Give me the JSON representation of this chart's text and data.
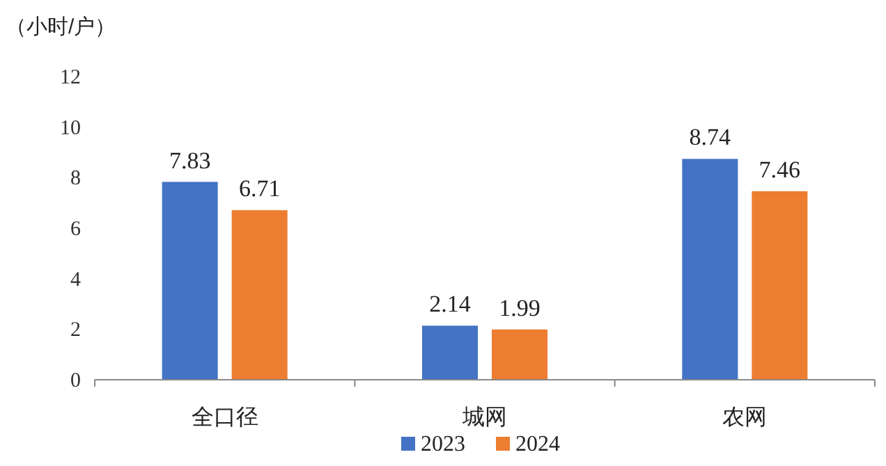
{
  "chart_data": {
    "type": "bar",
    "ylabel": "（小时/户）",
    "categories": [
      "全口径",
      "城网",
      "农网"
    ],
    "series": [
      {
        "name": "2023",
        "color": "#4472c4",
        "values": [
          7.83,
          2.14,
          8.74
        ]
      },
      {
        "name": "2024",
        "color": "#ed7d31",
        "values": [
          6.71,
          1.99,
          7.46
        ]
      }
    ],
    "ylim": [
      0,
      12
    ],
    "yticks": [
      0,
      2,
      4,
      6,
      8,
      10,
      12
    ],
    "grid": false,
    "legend": "bottom",
    "data_labels": true
  }
}
